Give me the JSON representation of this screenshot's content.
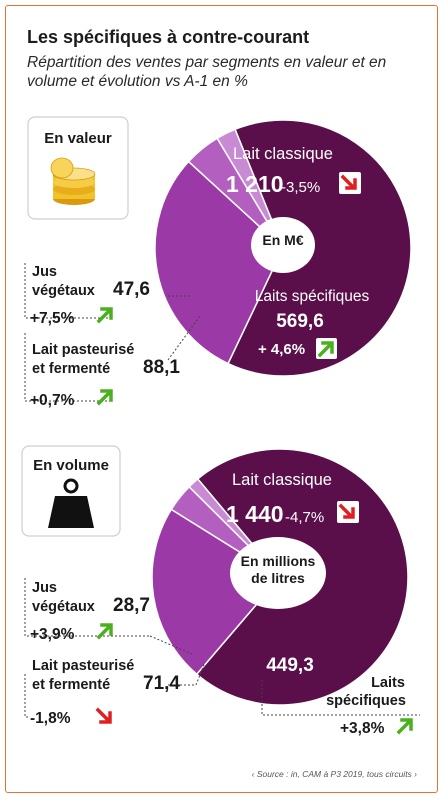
{
  "header": {
    "title": "Les spécifiques à contre-courant",
    "subtitle": "Répartition des ventes par segments en valeur et en volume et évolution vs A-1 en %"
  },
  "source": "‹ Source : in, CAM à P3 2019, tous circuits ›",
  "colors": {
    "frame": "#e2743a",
    "lait_classique": "#5a0f4a",
    "laits_specifiques": "#9b3aa6",
    "jus_vegetaux": "#c98ad4",
    "lait_pasteurise": "#b35fc0",
    "arrow_up": "#4caf1f",
    "arrow_down": "#e02020"
  },
  "icons": {
    "valeur": "coins-icon",
    "volume": "weight-icon"
  },
  "chart_data": [
    {
      "type": "pie",
      "panel_label": "En valeur",
      "center_label": "En M€",
      "categories": [
        "Lait classique",
        "Laits spécifiques",
        "Lait pasteurisé et fermenté",
        "Jus végétaux"
      ],
      "values": [
        1210,
        569.6,
        88.1,
        47.6
      ],
      "evolution": [
        "-3,5%",
        "+ 4,6%",
        "+0,7%",
        "+7,5%"
      ],
      "evolution_direction": [
        "down",
        "up",
        "up",
        "up"
      ],
      "display_values": [
        "1 210",
        "569,6",
        "88,1",
        "47,6"
      ],
      "labels": {
        "classique": "Lait classique",
        "specifiques": "Laits spécifiques",
        "pasteurise_1": "Lait pasteurisé",
        "pasteurise_2": "et fermenté",
        "jus_1": "Jus",
        "jus_2": "végétaux"
      }
    },
    {
      "type": "pie",
      "panel_label": "En volume",
      "center_label_1": "En millions",
      "center_label_2": "de litres",
      "categories": [
        "Lait classique",
        "Laits spécifiques",
        "Lait pasteurisé et fermenté",
        "Jus végétaux"
      ],
      "values": [
        1440,
        449.3,
        71.4,
        28.7
      ],
      "evolution": [
        "-4,7%",
        "+3,8%",
        "-1,8%",
        "+3,9%"
      ],
      "evolution_direction": [
        "down",
        "up",
        "down",
        "up"
      ],
      "display_values": [
        "1 440",
        "449,3",
        "71,4",
        "28,7"
      ],
      "labels": {
        "classique": "Lait classique",
        "specifiques_1": "Laits",
        "specifiques_2": "spécifiques",
        "pasteurise_1": "Lait pasteurisé",
        "pasteurise_2": "et fermenté",
        "jus_1": "Jus",
        "jus_2": "végétaux"
      }
    }
  ]
}
